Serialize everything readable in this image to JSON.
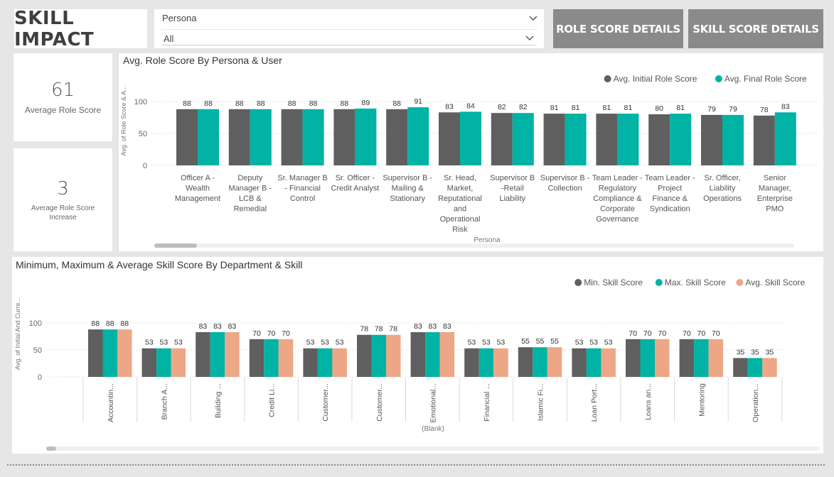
{
  "header": {
    "title": "SKILL IMPACT",
    "slicer": {
      "label": "Persona",
      "value": "All"
    },
    "buttons": {
      "role": "ROLE SCORE DETAILS",
      "skill": "SKILL SCORE DETAILS"
    }
  },
  "kpis": {
    "avg_role_score": {
      "value": "61",
      "label": "Average Role Score"
    },
    "avg_increase": {
      "value": "3",
      "label": "Average Role Score Increase"
    }
  },
  "colors": {
    "dark": "#5f5f5f",
    "teal": "#00b3a4",
    "salmon": "#eda787"
  },
  "chart_data": [
    {
      "type": "bar",
      "title": "Avg. Role Score By Persona & User",
      "xlabel": "Persona",
      "ylabel": "Avg. of Role Score & A...",
      "ylim": [
        0,
        100
      ],
      "yticks": [
        "0",
        "50",
        "100"
      ],
      "legend_position": "top-right",
      "categories": [
        [
          "Officer A -",
          "Wealth",
          "Management"
        ],
        [
          "Deputy",
          "Manager B -",
          "LCB &",
          "Remedial"
        ],
        [
          "Sr. Manager B",
          "- Financial",
          "Control"
        ],
        [
          "Sr. Officer -",
          "Credit Analyst"
        ],
        [
          "Supervisor B -",
          "Mailing &",
          "Stationary"
        ],
        [
          "Sr. Head,",
          "Market,",
          "Reputational",
          "and",
          "Operational",
          "Risk"
        ],
        [
          "Supervisor B",
          "-Retail",
          "Liability"
        ],
        [
          "Supervisor B -",
          "Collection"
        ],
        [
          "Team Leader -",
          "Regulatory",
          "Compliance &",
          "Corporate",
          "Governance"
        ],
        [
          "Team Leader -",
          "Project",
          "Finance &",
          "Syndication"
        ],
        [
          "Sr. Officer,",
          "Liability",
          "Operations"
        ],
        [
          "Senior",
          "Manager,",
          "Enterprise",
          "PMO"
        ]
      ],
      "series": [
        {
          "name": "Avg. Initial Role Score",
          "values": [
            88,
            88,
            88,
            88,
            88,
            83,
            82,
            81,
            81,
            80,
            79,
            78
          ]
        },
        {
          "name": "Avg. Final Role Score",
          "values": [
            88,
            88,
            88,
            89,
            91,
            84,
            82,
            81,
            81,
            81,
            79,
            83
          ]
        }
      ]
    },
    {
      "type": "bar",
      "title": "Minimum, Maximum & Average Skill Score By Department & Skill",
      "xlabel": "(Blank)",
      "ylabel": "Avg. of Initial And Curre...",
      "ylim": [
        0,
        100
      ],
      "yticks": [
        "0",
        "50",
        "100"
      ],
      "legend_position": "top-right",
      "categories": [
        "Accountin...",
        "Branch A...",
        "Building ...",
        "Credit Li...",
        "Customer...",
        "Customer...",
        "Emotional...",
        "Financial ...",
        "Islamic Fi...",
        "Loan Port...",
        "Loans an...",
        "Mentoring",
        "Operation..."
      ],
      "series": [
        {
          "name": "Min. Skill Score",
          "values": [
            88,
            53,
            83,
            70,
            53,
            78,
            83,
            53,
            55,
            53,
            70,
            70,
            35
          ]
        },
        {
          "name": "Max. Skill Score",
          "values": [
            88,
            53,
            83,
            70,
            53,
            78,
            83,
            53,
            55,
            53,
            70,
            70,
            35
          ]
        },
        {
          "name": "Avg. Skill Score",
          "values": [
            88,
            53,
            83,
            70,
            53,
            78,
            83,
            53,
            55,
            53,
            70,
            70,
            35
          ]
        }
      ]
    }
  ]
}
